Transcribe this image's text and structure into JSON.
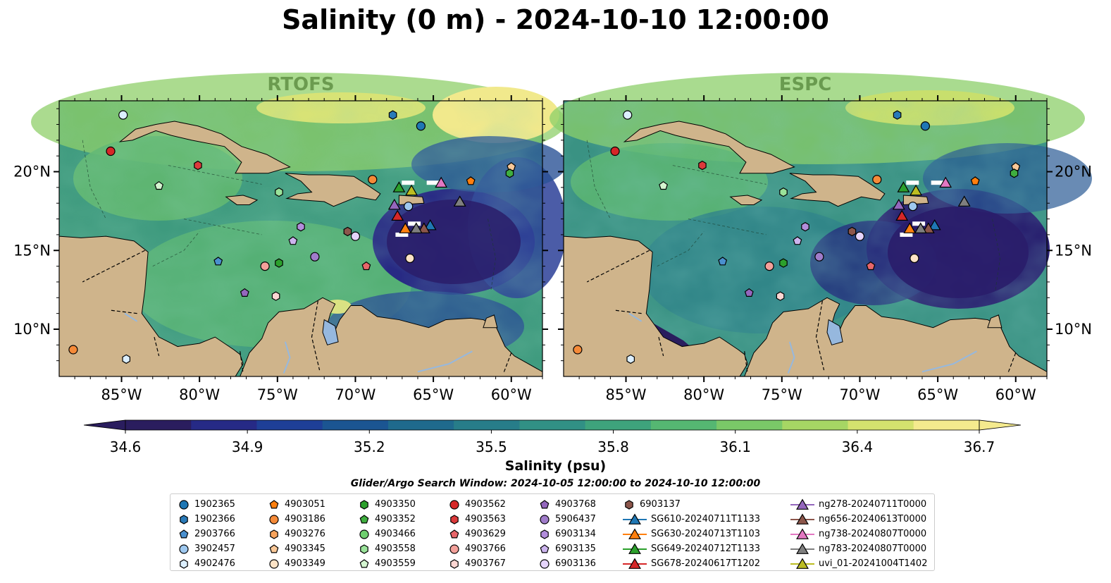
{
  "title": "Salinity (0 m) - 2024-10-10 12:00:00",
  "panels": [
    {
      "id": "rtofs",
      "title": "RTOFS"
    },
    {
      "id": "espc",
      "title": "ESPC"
    }
  ],
  "lat_labels": [
    "20°N",
    "15°N",
    "10°N"
  ],
  "lon_labels": [
    "85°W",
    "80°W",
    "75°W",
    "70°W",
    "65°W",
    "60°W"
  ],
  "map_extent": {
    "lon": [
      -89,
      -58
    ],
    "lat": [
      7,
      24.5
    ]
  },
  "colorbar": {
    "label": "Salinity (psu)",
    "ticks": [
      "34.6",
      "34.9",
      "35.2",
      "35.5",
      "35.8",
      "36.1",
      "36.4",
      "36.7"
    ],
    "range": [
      34.6,
      36.7
    ],
    "extend": "both",
    "colormap": [
      "#2a1d5e",
      "#262a86",
      "#1e3f97",
      "#1b5592",
      "#1f6a8d",
      "#277d89",
      "#319085",
      "#3ea37c",
      "#55b772",
      "#7ac868",
      "#a6d664",
      "#d4e26e",
      "#f4ea8e"
    ]
  },
  "land_color": "#cfb48b",
  "water_color": "#96b8de",
  "search_window": "Glider/Argo Search Window: 2024-10-05 12:00:00 to 2024-10-10 12:00:00",
  "legend": [
    {
      "name": "1902365",
      "shape": "circle",
      "color": "#1f77b4"
    },
    {
      "name": "1902366",
      "shape": "hexagon",
      "color": "#2a7ab8"
    },
    {
      "name": "2903766",
      "shape": "pentagon",
      "color": "#4a90cf"
    },
    {
      "name": "3902457",
      "shape": "circle",
      "color": "#9ec8ef"
    },
    {
      "name": "4902476",
      "shape": "hexagon",
      "color": "#dcefff"
    },
    {
      "name": "4903051",
      "shape": "pentagon",
      "color": "#ff7f0e"
    },
    {
      "name": "4903186",
      "shape": "circle",
      "color": "#f58a38"
    },
    {
      "name": "4903276",
      "shape": "hexagon",
      "color": "#f7a35c"
    },
    {
      "name": "4903345",
      "shape": "pentagon",
      "color": "#f9c898"
    },
    {
      "name": "4903349",
      "shape": "circle",
      "color": "#fde3c6"
    },
    {
      "name": "4903350",
      "shape": "hexagon",
      "color": "#2ca02c"
    },
    {
      "name": "4903352",
      "shape": "pentagon",
      "color": "#3fae3f"
    },
    {
      "name": "4903466",
      "shape": "circle",
      "color": "#6fcf6f"
    },
    {
      "name": "4903558",
      "shape": "hexagon",
      "color": "#9ae39a"
    },
    {
      "name": "4903559",
      "shape": "pentagon",
      "color": "#d4f5d0"
    },
    {
      "name": "4903562",
      "shape": "circle",
      "color": "#d62728"
    },
    {
      "name": "4903563",
      "shape": "hexagon",
      "color": "#dc3a3b"
    },
    {
      "name": "4903629",
      "shape": "pentagon",
      "color": "#e8666a"
    },
    {
      "name": "4903766",
      "shape": "circle",
      "color": "#f3a09a"
    },
    {
      "name": "4903767",
      "shape": "hexagon",
      "color": "#fcd6d2"
    },
    {
      "name": "4903768",
      "shape": "pentagon",
      "color": "#9467bd"
    },
    {
      "name": "5906437",
      "shape": "circle",
      "color": "#a07cca"
    },
    {
      "name": "6903134",
      "shape": "hexagon",
      "color": "#b28ddb"
    },
    {
      "name": "6903135",
      "shape": "pentagon",
      "color": "#ccb4ee"
    },
    {
      "name": "6903136",
      "shape": "circle",
      "color": "#e5d4fb"
    },
    {
      "name": "6903137",
      "shape": "hexagon",
      "color": "#8c564b"
    },
    {
      "name": "SG610-20240711T1133",
      "shape": "triangle-line",
      "color": "#1f77b4"
    },
    {
      "name": "SG630-20240713T1103",
      "shape": "triangle-line",
      "color": "#ff7f0e"
    },
    {
      "name": "SG649-20240712T1133",
      "shape": "triangle-line",
      "color": "#2ca02c"
    },
    {
      "name": "SG678-20240617T1202",
      "shape": "triangle-line",
      "color": "#d62728"
    },
    {
      "name": "ng278-20240711T0000",
      "shape": "triangle-line",
      "color": "#9467bd"
    },
    {
      "name": "ng656-20240613T0000",
      "shape": "triangle-line",
      "color": "#8c564b"
    },
    {
      "name": "ng738-20240807T0000",
      "shape": "triangle-line",
      "color": "#e377c2"
    },
    {
      "name": "ng783-20240807T0000",
      "shape": "triangle-line",
      "color": "#7f7f7f"
    },
    {
      "name": "uvi_01-20241004T1402",
      "shape": "triangle-line",
      "color": "#bcbd22"
    }
  ],
  "observations": [
    {
      "lon": -84.9,
      "lat": 23.6,
      "shape": "circle",
      "color": "#dcefff"
    },
    {
      "lon": -67.6,
      "lat": 23.6,
      "shape": "hexagon",
      "color": "#2a7ab8"
    },
    {
      "lon": -65.8,
      "lat": 22.9,
      "shape": "circle",
      "color": "#1f77b4"
    },
    {
      "lon": -85.7,
      "lat": 21.3,
      "shape": "circle",
      "color": "#d62728"
    },
    {
      "lon": -80.1,
      "lat": 20.4,
      "shape": "hexagon",
      "color": "#dc3a3b"
    },
    {
      "lon": -82.6,
      "lat": 19.1,
      "shape": "pentagon",
      "color": "#d4f5d0"
    },
    {
      "lon": -74.9,
      "lat": 18.7,
      "shape": "hexagon",
      "color": "#9ae39a"
    },
    {
      "lon": -68.9,
      "lat": 19.5,
      "shape": "circle",
      "color": "#f58a38"
    },
    {
      "lon": -62.6,
      "lat": 19.4,
      "shape": "pentagon",
      "color": "#ff7f0e"
    },
    {
      "lon": -60.0,
      "lat": 20.3,
      "shape": "pentagon",
      "color": "#f9c898"
    },
    {
      "lon": -60.1,
      "lat": 19.9,
      "shape": "hexagon",
      "color": "#3fae3f"
    },
    {
      "lon": -66.6,
      "lat": 17.8,
      "shape": "circle",
      "color": "#9ec8ef"
    },
    {
      "lon": -73.5,
      "lat": 16.5,
      "shape": "hexagon",
      "color": "#b28ddb"
    },
    {
      "lon": -70.5,
      "lat": 16.2,
      "shape": "hexagon",
      "color": "#8c564b"
    },
    {
      "lon": -70.0,
      "lat": 15.9,
      "shape": "circle",
      "color": "#e5d4fb"
    },
    {
      "lon": -74.0,
      "lat": 15.6,
      "shape": "pentagon",
      "color": "#ccb4ee"
    },
    {
      "lon": -72.6,
      "lat": 14.6,
      "shape": "circle",
      "color": "#a07cca"
    },
    {
      "lon": -78.8,
      "lat": 14.3,
      "shape": "pentagon",
      "color": "#4a90cf"
    },
    {
      "lon": -75.8,
      "lat": 14.0,
      "shape": "circle",
      "color": "#f3a09a"
    },
    {
      "lon": -74.9,
      "lat": 14.2,
      "shape": "hexagon",
      "color": "#2ca02c"
    },
    {
      "lon": -69.3,
      "lat": 14.0,
      "shape": "pentagon",
      "color": "#e8666a"
    },
    {
      "lon": -66.5,
      "lat": 14.5,
      "shape": "circle",
      "color": "#fde3c6"
    },
    {
      "lon": -77.1,
      "lat": 12.3,
      "shape": "pentagon",
      "color": "#9467bd"
    },
    {
      "lon": -75.1,
      "lat": 12.1,
      "shape": "hexagon",
      "color": "#fcd6d2"
    },
    {
      "lon": -88.1,
      "lat": 8.7,
      "shape": "circle",
      "color": "#f58a38"
    },
    {
      "lon": -84.7,
      "lat": 8.1,
      "shape": "hexagon",
      "color": "#dcefff"
    },
    {
      "lon": -67.2,
      "lat": 19.0,
      "shape": "triangle",
      "color": "#2ca02c"
    },
    {
      "lon": -66.4,
      "lat": 18.8,
      "shape": "triangle",
      "color": "#bcbd22"
    },
    {
      "lon": -64.5,
      "lat": 19.3,
      "shape": "triangle",
      "color": "#e377c2"
    },
    {
      "lon": -67.5,
      "lat": 17.9,
      "shape": "triangle",
      "color": "#9467bd"
    },
    {
      "lon": -63.3,
      "lat": 18.1,
      "shape": "triangle",
      "color": "#7f7f7f"
    },
    {
      "lon": -67.3,
      "lat": 17.2,
      "shape": "triangle",
      "color": "#d62728"
    },
    {
      "lon": -66.8,
      "lat": 16.4,
      "shape": "triangle",
      "color": "#ff7f0e"
    },
    {
      "lon": -65.2,
      "lat": 16.6,
      "shape": "triangle",
      "color": "#1f77b4"
    },
    {
      "lon": -65.6,
      "lat": 16.4,
      "shape": "triangle",
      "color": "#8c564b"
    },
    {
      "lon": -66.1,
      "lat": 16.4,
      "shape": "triangle",
      "color": "#7f7f7f"
    }
  ]
}
